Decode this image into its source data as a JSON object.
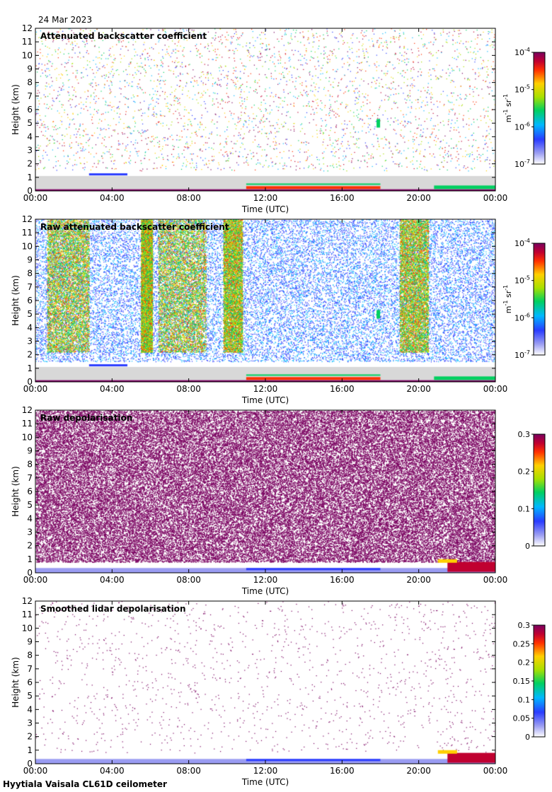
{
  "date_label": "24 Mar 2023",
  "footer": "Hyytiala Vaisala CL61D ceilometer",
  "chart_data": [
    {
      "type": "heatmap",
      "title": "Attenuated backscatter coefficient",
      "xlabel": "Time (UTC)",
      "ylabel": "Height (km)",
      "xticks": [
        "00:00",
        "04:00",
        "08:00",
        "12:00",
        "16:00",
        "20:00",
        "00:00"
      ],
      "xlim": [
        0,
        24
      ],
      "yticks": [
        0,
        1,
        2,
        3,
        4,
        5,
        6,
        7,
        8,
        9,
        10,
        11,
        12
      ],
      "ylim": [
        0,
        12
      ],
      "colorbar": {
        "scale": "log",
        "range": [
          1e-07,
          0.0001
        ],
        "ticks": [
          {
            "base": "10",
            "exp": "-7"
          },
          {
            "base": "10",
            "exp": "-6"
          },
          {
            "base": "10",
            "exp": "-5"
          },
          {
            "base": "10",
            "exp": "-4"
          }
        ],
        "units": {
          "base1": "m",
          "exp1": "-1",
          "base2": "sr",
          "exp2": "-1"
        }
      }
    },
    {
      "type": "heatmap",
      "title": "Raw attenuated backscatter coefficient",
      "xlabel": "Time (UTC)",
      "ylabel": "Height (km)",
      "xticks": [
        "00:00",
        "04:00",
        "08:00",
        "12:00",
        "16:00",
        "20:00",
        "00:00"
      ],
      "xlim": [
        0,
        24
      ],
      "yticks": [
        0,
        1,
        2,
        3,
        4,
        5,
        6,
        7,
        8,
        9,
        10,
        11,
        12
      ],
      "ylim": [
        0,
        12
      ],
      "colorbar": {
        "scale": "log",
        "range": [
          1e-07,
          0.0001
        ],
        "ticks": [
          {
            "base": "10",
            "exp": "-7"
          },
          {
            "base": "10",
            "exp": "-6"
          },
          {
            "base": "10",
            "exp": "-5"
          },
          {
            "base": "10",
            "exp": "-4"
          }
        ],
        "units": {
          "base1": "m",
          "exp1": "-1",
          "base2": "sr",
          "exp2": "-1"
        }
      }
    },
    {
      "type": "heatmap",
      "title": "Raw depolarisation",
      "xlabel": "Time (UTC)",
      "ylabel": "Height (km)",
      "xticks": [
        "00:00",
        "04:00",
        "08:00",
        "12:00",
        "16:00",
        "20:00",
        "00:00"
      ],
      "xlim": [
        0,
        24
      ],
      "yticks": [
        0,
        1,
        2,
        3,
        4,
        5,
        6,
        7,
        8,
        9,
        10,
        11,
        12
      ],
      "ylim": [
        0,
        12
      ],
      "colorbar": {
        "scale": "linear",
        "range": [
          0,
          0.3
        ],
        "ticks": [
          "0",
          "0.1",
          "0.2",
          "0.3"
        ]
      }
    },
    {
      "type": "heatmap",
      "title": "Smoothed lidar depolarisation",
      "xlabel": "Time (UTC)",
      "ylabel": "Height (km)",
      "xticks": [
        "00:00",
        "04:00",
        "08:00",
        "12:00",
        "16:00",
        "20:00",
        "00:00"
      ],
      "xlim": [
        0,
        24
      ],
      "yticks": [
        0,
        1,
        2,
        3,
        4,
        5,
        6,
        7,
        8,
        9,
        10,
        11,
        12
      ],
      "ylim": [
        0,
        12
      ],
      "colorbar": {
        "scale": "linear",
        "range": [
          0,
          0.3
        ],
        "ticks": [
          "0",
          "0.05",
          "0.1",
          "0.15",
          "0.2",
          "0.25",
          "0.3"
        ]
      }
    }
  ]
}
